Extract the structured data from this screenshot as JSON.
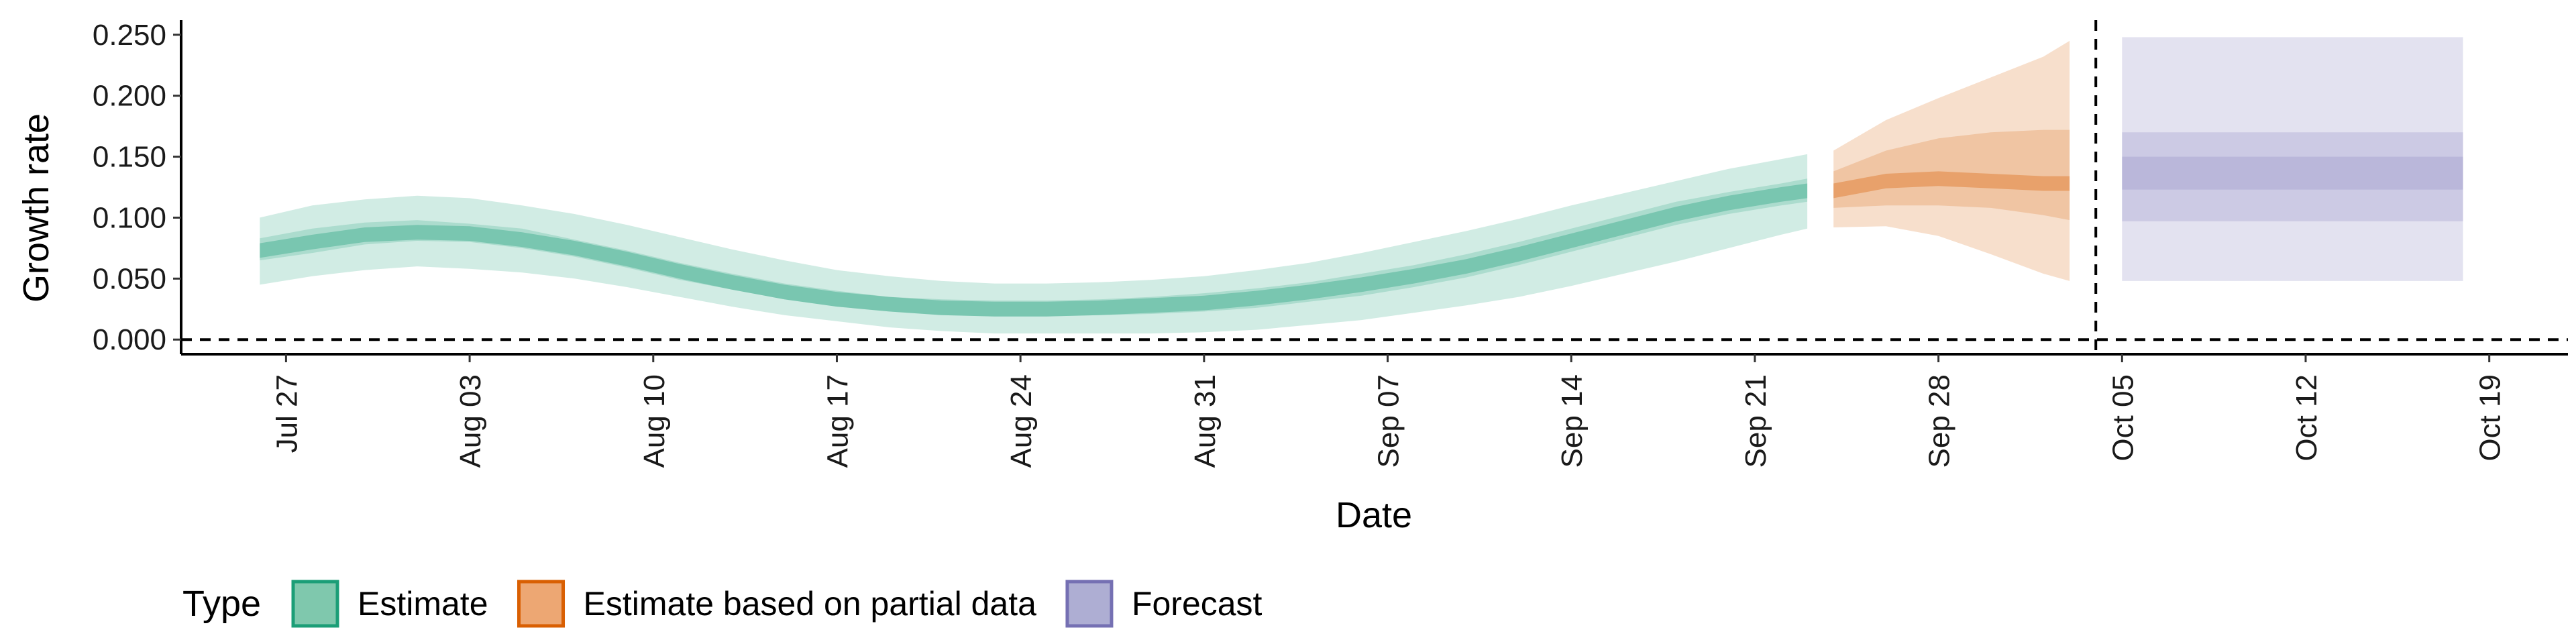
{
  "chart_data": {
    "type": "area",
    "xlabel": "Date",
    "ylabel": "Growth rate",
    "ylim": [
      -0.012,
      0.262
    ],
    "x_ticks": [
      "2020-07-27",
      "2020-08-03",
      "2020-08-10",
      "2020-08-17",
      "2020-08-24",
      "2020-08-31",
      "2020-09-07",
      "2020-09-14",
      "2020-09-21",
      "2020-09-28",
      "2020-10-05",
      "2020-10-12",
      "2020-10-19"
    ],
    "x_tick_labels": [
      "Jul 27",
      "Aug 03",
      "Aug 10",
      "Aug 17",
      "Aug 24",
      "Aug 31",
      "Sep 07",
      "Sep 14",
      "Sep 21",
      "Sep 28",
      "Oct 05",
      "Oct 12",
      "Oct 19"
    ],
    "y_ticks": [
      0,
      0.05,
      0.1,
      0.15,
      0.2,
      0.25
    ],
    "y_tick_labels": [
      "0.000",
      "0.050",
      "0.100",
      "0.150",
      "0.200",
      "0.250"
    ],
    "hline": 0,
    "vline": "2020-10-04",
    "grid": false,
    "legend": {
      "title": "Type",
      "position": "bottom",
      "items": [
        {
          "label": "Estimate",
          "fill": "#7fc8ad",
          "border": "#1b9e77"
        },
        {
          "label": "Estimate based on partial data",
          "fill": "#eda773",
          "border": "#d95f02"
        },
        {
          "label": "Forecast",
          "fill": "#aeaed3",
          "border": "#7570b3"
        }
      ]
    },
    "series": [
      {
        "name": "Estimate",
        "color": "#1b9e77",
        "x": [
          "2020-07-26",
          "2020-07-28",
          "2020-07-30",
          "2020-08-01",
          "2020-08-03",
          "2020-08-05",
          "2020-08-07",
          "2020-08-09",
          "2020-08-11",
          "2020-08-13",
          "2020-08-15",
          "2020-08-17",
          "2020-08-19",
          "2020-08-21",
          "2020-08-23",
          "2020-08-25",
          "2020-08-27",
          "2020-08-29",
          "2020-08-31",
          "2020-09-02",
          "2020-09-04",
          "2020-09-06",
          "2020-09-08",
          "2020-09-10",
          "2020-09-12",
          "2020-09-14",
          "2020-09-16",
          "2020-09-18",
          "2020-09-20",
          "2020-09-22",
          "2020-09-23"
        ],
        "lower90": [
          0.045,
          0.052,
          0.057,
          0.06,
          0.058,
          0.055,
          0.05,
          0.043,
          0.035,
          0.027,
          0.02,
          0.015,
          0.01,
          0.007,
          0.005,
          0.005,
          0.005,
          0.005,
          0.006,
          0.008,
          0.012,
          0.016,
          0.022,
          0.028,
          0.035,
          0.044,
          0.054,
          0.064,
          0.075,
          0.086,
          0.091
        ],
        "upper90": [
          0.1,
          0.11,
          0.115,
          0.118,
          0.116,
          0.11,
          0.103,
          0.094,
          0.084,
          0.074,
          0.065,
          0.057,
          0.052,
          0.048,
          0.046,
          0.046,
          0.047,
          0.049,
          0.052,
          0.057,
          0.063,
          0.071,
          0.08,
          0.089,
          0.099,
          0.11,
          0.12,
          0.13,
          0.14,
          0.148,
          0.152
        ],
        "lower50": [
          0.065,
          0.071,
          0.078,
          0.081,
          0.08,
          0.075,
          0.068,
          0.059,
          0.049,
          0.041,
          0.033,
          0.027,
          0.023,
          0.02,
          0.019,
          0.019,
          0.02,
          0.021,
          0.023,
          0.026,
          0.031,
          0.036,
          0.043,
          0.051,
          0.061,
          0.072,
          0.083,
          0.094,
          0.103,
          0.11,
          0.113
        ],
        "upper50": [
          0.083,
          0.091,
          0.096,
          0.098,
          0.095,
          0.091,
          0.082,
          0.073,
          0.063,
          0.054,
          0.046,
          0.04,
          0.035,
          0.033,
          0.032,
          0.032,
          0.033,
          0.035,
          0.038,
          0.042,
          0.047,
          0.054,
          0.061,
          0.07,
          0.08,
          0.091,
          0.102,
          0.113,
          0.121,
          0.128,
          0.132
        ],
        "median": [
          0.073,
          0.08,
          0.086,
          0.088,
          0.087,
          0.082,
          0.075,
          0.066,
          0.056,
          0.047,
          0.039,
          0.033,
          0.029,
          0.026,
          0.025,
          0.025,
          0.026,
          0.028,
          0.03,
          0.034,
          0.039,
          0.045,
          0.052,
          0.06,
          0.07,
          0.081,
          0.092,
          0.103,
          0.112,
          0.119,
          0.122
        ]
      },
      {
        "name": "Estimate based on partial data",
        "color": "#d95f02",
        "x": [
          "2020-09-24",
          "2020-09-26",
          "2020-09-28",
          "2020-09-30",
          "2020-10-02",
          "2020-10-03"
        ],
        "lower90": [
          0.092,
          0.093,
          0.085,
          0.07,
          0.054,
          0.048
        ],
        "upper90": [
          0.155,
          0.18,
          0.198,
          0.215,
          0.232,
          0.245
        ],
        "lower50": [
          0.108,
          0.11,
          0.11,
          0.108,
          0.102,
          0.098
        ],
        "upper50": [
          0.138,
          0.155,
          0.165,
          0.17,
          0.172,
          0.172
        ],
        "median": [
          0.122,
          0.13,
          0.132,
          0.13,
          0.128,
          0.128
        ]
      },
      {
        "name": "Forecast",
        "color": "#7570b3",
        "x": [
          "2020-10-05",
          "2020-10-18"
        ],
        "lower90": [
          0.048,
          0.048
        ],
        "upper90": [
          0.248,
          0.248
        ],
        "lower50": [
          0.097,
          0.097
        ],
        "upper50": [
          0.17,
          0.17
        ],
        "lower20": [
          0.123,
          0.123
        ],
        "upper20": [
          0.15,
          0.15
        ]
      }
    ]
  }
}
